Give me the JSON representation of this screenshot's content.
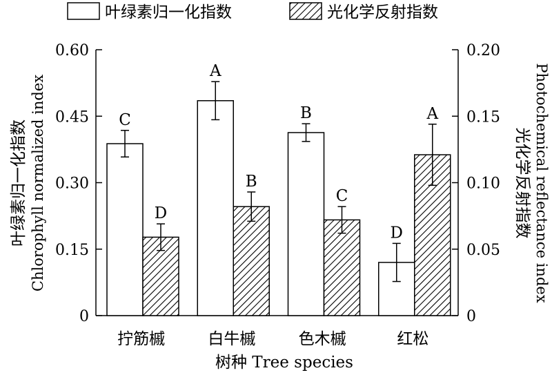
{
  "chart_data": {
    "type": "bar",
    "categories": [
      "拧筋槭",
      "白牛槭",
      "色木槭",
      "红松"
    ],
    "series": [
      {
        "name": "叶绿素归一化指数",
        "axis": "left",
        "fill": "white",
        "values": [
          0.388,
          0.485,
          0.413,
          0.12
        ],
        "errors": [
          0.03,
          0.043,
          0.02,
          0.043
        ],
        "letters": [
          "C",
          "A",
          "B",
          "D"
        ]
      },
      {
        "name": "光化学反射指数",
        "axis": "right",
        "fill": "hatched",
        "values": [
          0.059,
          0.082,
          0.072,
          0.121
        ],
        "errors": [
          0.01,
          0.011,
          0.01,
          0.023
        ],
        "letters": [
          "D",
          "B",
          "C",
          "A"
        ]
      }
    ],
    "xlabel": "树种 Tree species",
    "ylabel_left_cn": "叶绿素归一化指数",
    "ylabel_left_en": "Chlorophyll normalized index",
    "ylabel_right_cn": "光化学反射指数",
    "ylabel_right_en": "Photochemical reflectance index",
    "ylim_left": [
      0,
      0.6
    ],
    "ylim_right": [
      0,
      0.2
    ],
    "yticks_left": [
      "0",
      "0.15",
      "0.30",
      "0.45",
      "0.60"
    ],
    "yticks_right": [
      "0",
      "0.05",
      "0.10",
      "0.15",
      "0.20"
    ],
    "legend_position": "top",
    "grid": false
  }
}
